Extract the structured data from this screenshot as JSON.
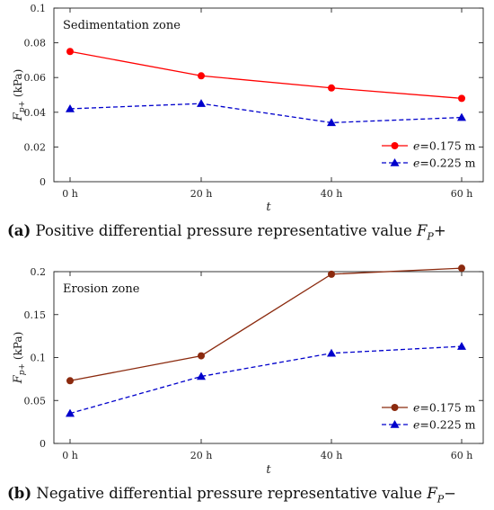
{
  "chart_data": [
    {
      "type": "line",
      "annotation": "Sedimentation zone",
      "xlabel": "t",
      "ylabel": "F_{p+} (kPa)",
      "ylabel_text": "(kPa)",
      "categories": [
        "0 h",
        "20 h",
        "40 h",
        "60 h"
      ],
      "ylim": [
        0,
        0.1
      ],
      "yticks": [
        0,
        0.02,
        0.04,
        0.06,
        0.08,
        0.1
      ],
      "ytick_labels": [
        "0",
        "0.02",
        "0.04",
        "0.06",
        "0.08",
        "0.1"
      ],
      "grid": false,
      "legend_position": "bottom-right",
      "series": [
        {
          "name": "e=0.175 m",
          "values": [
            0.075,
            0.061,
            0.054,
            0.048
          ],
          "color": "#ff0000",
          "marker": "circle",
          "dash": "solid"
        },
        {
          "name": "e=0.225 m",
          "values": [
            0.042,
            0.045,
            0.034,
            0.037
          ],
          "color": "#0000cc",
          "marker": "triangle",
          "dash": "dashed"
        }
      ],
      "caption_label": "(a)",
      "caption_text": " Positive differential pressure representative value ",
      "caption_symbol": "F",
      "caption_sub": "P",
      "caption_suffix": "+"
    },
    {
      "type": "line",
      "annotation": "Erosion zone",
      "xlabel": "t",
      "ylabel": "F_{p+} (kPa)",
      "ylabel_text": "(kPa)",
      "categories": [
        "0 h",
        "20 h",
        "40 h",
        "60 h"
      ],
      "ylim": [
        0,
        0.2
      ],
      "yticks": [
        0,
        0.05,
        0.1,
        0.15,
        0.2
      ],
      "ytick_labels": [
        "0",
        "0.05",
        "0.1",
        "0.15",
        "0.2"
      ],
      "grid": false,
      "legend_position": "bottom-right",
      "series": [
        {
          "name": "e=0.175 m",
          "values": [
            0.073,
            0.102,
            0.197,
            0.204
          ],
          "color": "#8b2a0e",
          "marker": "circle",
          "dash": "solid"
        },
        {
          "name": "e=0.225 m",
          "values": [
            0.035,
            0.078,
            0.105,
            0.113
          ],
          "color": "#0000cc",
          "marker": "triangle",
          "dash": "dashed"
        }
      ],
      "caption_label": "(b)",
      "caption_text": " Negative differential pressure representative value ",
      "caption_symbol": "F",
      "caption_sub": "P",
      "caption_suffix": "−"
    }
  ]
}
